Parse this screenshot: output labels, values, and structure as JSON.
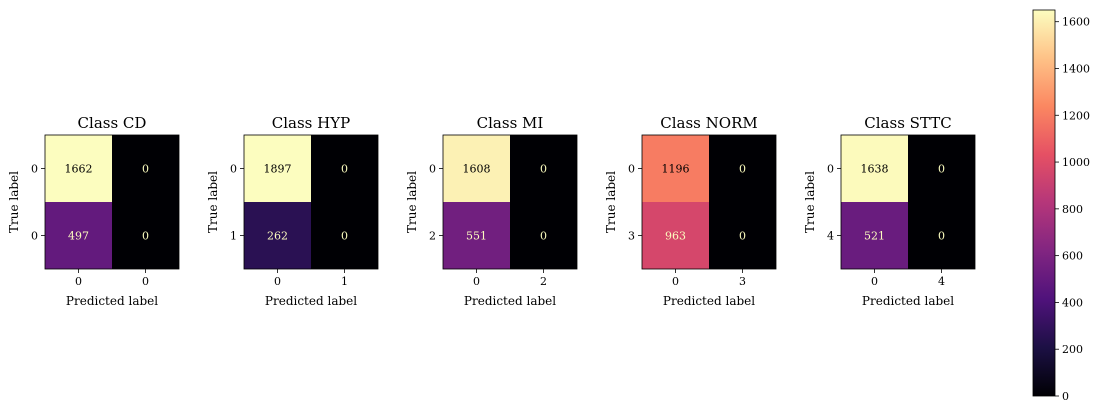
{
  "chart_data": {
    "type": "heatmap",
    "colormap": "magma",
    "colorbar": {
      "range": [
        0,
        1650
      ],
      "ticks": [
        0,
        200,
        400,
        600,
        800,
        1000,
        1200,
        1400,
        1600
      ]
    },
    "panels": [
      {
        "title": "Class CD",
        "xlabel": "Predicted label",
        "ylabel": "True label",
        "x_ticks": [
          "0",
          "0"
        ],
        "y_ticks": [
          "0",
          "0"
        ],
        "matrix": [
          [
            1662,
            0
          ],
          [
            497,
            0
          ]
        ]
      },
      {
        "title": "Class HYP",
        "xlabel": "Predicted label",
        "ylabel": "True label",
        "x_ticks": [
          "0",
          "1"
        ],
        "y_ticks": [
          "0",
          "1"
        ],
        "matrix": [
          [
            1897,
            0
          ],
          [
            262,
            0
          ]
        ]
      },
      {
        "title": "Class MI",
        "xlabel": "Predicted label",
        "ylabel": "True label",
        "x_ticks": [
          "0",
          "2"
        ],
        "y_ticks": [
          "0",
          "2"
        ],
        "matrix": [
          [
            1608,
            0
          ],
          [
            551,
            0
          ]
        ]
      },
      {
        "title": "Class NORM",
        "xlabel": "Predicted label",
        "ylabel": "True label",
        "x_ticks": [
          "0",
          "3"
        ],
        "y_ticks": [
          "0",
          "3"
        ],
        "matrix": [
          [
            1196,
            0
          ],
          [
            963,
            0
          ]
        ]
      },
      {
        "title": "Class STTC",
        "xlabel": "Predicted label",
        "ylabel": "True label",
        "x_ticks": [
          "0",
          "4"
        ],
        "y_ticks": [
          "0",
          "4"
        ],
        "matrix": [
          [
            1638,
            0
          ],
          [
            521,
            0
          ]
        ]
      }
    ]
  }
}
